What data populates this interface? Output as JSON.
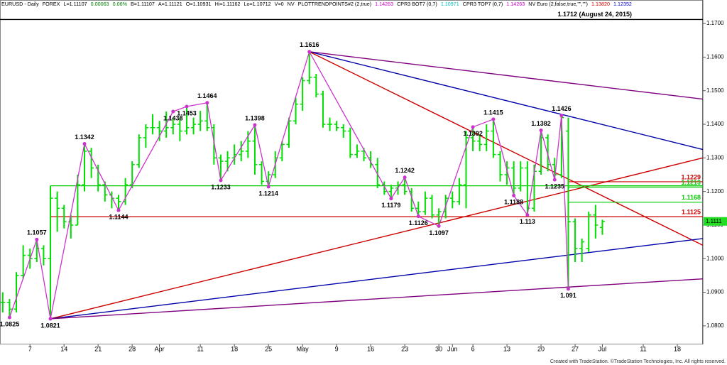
{
  "chart_data": {
    "type": "ohlc",
    "header": [
      {
        "text": "EURUSD - Daily",
        "color": "#000"
      },
      {
        "text": "FOREX",
        "color": "#000"
      },
      {
        "text": "L=1.11107",
        "color": "#000"
      },
      {
        "text": "0.00063",
        "color": "#008000"
      },
      {
        "text": "0.06%",
        "color": "#008000"
      },
      {
        "text": "B=1.11107",
        "color": "#000"
      },
      {
        "text": "A=1.11121",
        "color": "#000"
      },
      {
        "text": "O=1.10931",
        "color": "#000"
      },
      {
        "text": "Hi=1.11162",
        "color": "#000"
      },
      {
        "text": "Lo=1.10712",
        "color": "#000"
      },
      {
        "text": "V=0",
        "color": "#000"
      },
      {
        "text": "NV",
        "color": "#000"
      },
      {
        "text": "PLOTTRENDPOINTS#2 (2,true)",
        "color": "#000"
      },
      {
        "text": "1.14263",
        "color": "#cc00cc"
      },
      {
        "text": "CPR3 BOT7 (0,7)",
        "color": "#000"
      },
      {
        "text": "1.10971",
        "color": "#00bbbb"
      },
      {
        "text": "CPR3 TOP7 (0,7)",
        "color": "#000"
      },
      {
        "text": "1.14263",
        "color": "#cc00cc"
      },
      {
        "text": "NV Euro (2,false,true,\"\",\"\")",
        "color": "#000"
      },
      {
        "text": "1.13820",
        "color": "#cc0000"
      },
      {
        "text": "1.12352",
        "color": "#0000cc"
      }
    ],
    "footer": "Created with TradeStation. ©TradeStation Technologies, Inc. All rights reserved.",
    "color": "#00dd00",
    "x": [
      1,
      2,
      3,
      4,
      5,
      6,
      7,
      8,
      9,
      10,
      11,
      12,
      13,
      14,
      15,
      16,
      17,
      18,
      19,
      20,
      21,
      22,
      23,
      24,
      25,
      26,
      27,
      28,
      29,
      30,
      31,
      32,
      33,
      34,
      35,
      36,
      37,
      38,
      39,
      40,
      41,
      42,
      43,
      44,
      45,
      46,
      47,
      48,
      49,
      50,
      51,
      52,
      53,
      54,
      55,
      56,
      57,
      58,
      59,
      60,
      61,
      62,
      63,
      64,
      65,
      66,
      67,
      68,
      69,
      70,
      71,
      72,
      73,
      74,
      75,
      76,
      77,
      78,
      79,
      80,
      81,
      82,
      83,
      84,
      85,
      86,
      87,
      88,
      89
    ],
    "ohlc": [
      [
        1.087,
        1.09,
        1.084,
        1.087
      ],
      [
        1.087,
        1.088,
        1.0825,
        1.085
      ],
      [
        1.085,
        1.096,
        1.084,
        1.095
      ],
      [
        1.095,
        1.104,
        1.094,
        1.101
      ],
      [
        1.101,
        1.103,
        1.097,
        1.1
      ],
      [
        1.1,
        1.1057,
        1.099,
        1.103
      ],
      [
        1.103,
        1.104,
        1.098,
        1.1
      ],
      [
        1.1,
        1.1217,
        1.0821,
        1.118
      ],
      [
        1.118,
        1.12,
        1.108,
        1.115
      ],
      [
        1.115,
        1.116,
        1.109,
        1.111
      ],
      [
        1.111,
        1.113,
        1.106,
        1.11
      ],
      [
        1.11,
        1.125,
        1.11,
        1.122
      ],
      [
        1.122,
        1.1342,
        1.12,
        1.132
      ],
      [
        1.132,
        1.133,
        1.124,
        1.127
      ],
      [
        1.127,
        1.128,
        1.12,
        1.122
      ],
      [
        1.122,
        1.123,
        1.117,
        1.119
      ],
      [
        1.119,
        1.12,
        1.115,
        1.118
      ],
      [
        1.118,
        1.119,
        1.1144,
        1.117
      ],
      [
        1.117,
        1.124,
        1.116,
        1.122
      ],
      [
        1.122,
        1.129,
        1.121,
        1.128
      ],
      [
        1.128,
        1.137,
        1.127,
        1.136
      ],
      [
        1.136,
        1.14,
        1.133,
        1.139
      ],
      [
        1.139,
        1.143,
        1.137,
        1.139
      ],
      [
        1.139,
        1.141,
        1.135,
        1.138
      ],
      [
        1.138,
        1.1438,
        1.136,
        1.139
      ],
      [
        1.139,
        1.142,
        1.137,
        1.14
      ],
      [
        1.14,
        1.142,
        1.135,
        1.138
      ],
      [
        1.138,
        1.1453,
        1.137,
        1.139
      ],
      [
        1.139,
        1.142,
        1.137,
        1.14
      ],
      [
        1.14,
        1.144,
        1.138,
        1.141
      ],
      [
        1.141,
        1.1464,
        1.138,
        1.139
      ],
      [
        1.139,
        1.14,
        1.128,
        1.13
      ],
      [
        1.13,
        1.131,
        1.1233,
        1.129
      ],
      [
        1.129,
        1.132,
        1.126,
        1.13
      ],
      [
        1.13,
        1.134,
        1.128,
        1.131
      ],
      [
        1.131,
        1.135,
        1.129,
        1.132
      ],
      [
        1.132,
        1.138,
        1.13,
        1.135
      ],
      [
        1.135,
        1.1398,
        1.125,
        1.128
      ],
      [
        1.128,
        1.129,
        1.122,
        1.123
      ],
      [
        1.123,
        1.126,
        1.1214,
        1.125
      ],
      [
        1.125,
        1.132,
        1.124,
        1.13
      ],
      [
        1.13,
        1.135,
        1.129,
        1.134
      ],
      [
        1.134,
        1.142,
        1.133,
        1.141
      ],
      [
        1.141,
        1.148,
        1.14,
        1.146
      ],
      [
        1.146,
        1.154,
        1.144,
        1.153
      ],
      [
        1.153,
        1.1616,
        1.152,
        1.154
      ],
      [
        1.154,
        1.155,
        1.148,
        1.149
      ],
      [
        1.149,
        1.15,
        1.139,
        1.14
      ],
      [
        1.14,
        1.142,
        1.138,
        1.14
      ],
      [
        1.14,
        1.141,
        1.138,
        1.139
      ],
      [
        1.139,
        1.14,
        1.136,
        1.138
      ],
      [
        1.138,
        1.139,
        1.13,
        1.131
      ],
      [
        1.131,
        1.134,
        1.13,
        1.132
      ],
      [
        1.132,
        1.133,
        1.129,
        1.13
      ],
      [
        1.13,
        1.132,
        1.127,
        1.128
      ],
      [
        1.128,
        1.13,
        1.121,
        1.122
      ],
      [
        1.122,
        1.123,
        1.119,
        1.12
      ],
      [
        1.12,
        1.122,
        1.1179,
        1.121
      ],
      [
        1.121,
        1.123,
        1.119,
        1.122
      ],
      [
        1.122,
        1.1242,
        1.119,
        1.12
      ],
      [
        1.12,
        1.121,
        1.114,
        1.115
      ],
      [
        1.115,
        1.117,
        1.1126,
        1.114
      ],
      [
        1.114,
        1.12,
        1.113,
        1.118
      ],
      [
        1.118,
        1.119,
        1.112,
        1.113
      ],
      [
        1.113,
        1.115,
        1.1097,
        1.114
      ],
      [
        1.114,
        1.119,
        1.112,
        1.118
      ],
      [
        1.118,
        1.12,
        1.115,
        1.117
      ],
      [
        1.117,
        1.124,
        1.116,
        1.122
      ],
      [
        1.122,
        1.138,
        1.115,
        1.136
      ],
      [
        1.136,
        1.1392,
        1.132,
        1.135
      ],
      [
        1.135,
        1.137,
        1.132,
        1.134
      ],
      [
        1.134,
        1.14,
        1.132,
        1.138
      ],
      [
        1.138,
        1.1415,
        1.13,
        1.131
      ],
      [
        1.131,
        1.132,
        1.123,
        1.125
      ],
      [
        1.125,
        1.129,
        1.122,
        1.127
      ],
      [
        1.127,
        1.129,
        1.1188,
        1.121
      ],
      [
        1.121,
        1.129,
        1.12,
        1.127
      ],
      [
        1.127,
        1.129,
        1.113,
        1.115
      ],
      [
        1.115,
        1.128,
        1.114,
        1.126
      ],
      [
        1.126,
        1.1382,
        1.125,
        1.136
      ],
      [
        1.136,
        1.137,
        1.126,
        1.128
      ],
      [
        1.128,
        1.13,
        1.1235,
        1.125
      ],
      [
        1.125,
        1.1426,
        1.124,
        1.142
      ],
      [
        1.138,
        1.142,
        1.091,
        1.111
      ],
      [
        1.111,
        1.112,
        1.099,
        1.103
      ],
      [
        1.103,
        1.106,
        1.099,
        1.105
      ],
      [
        1.103,
        1.114,
        1.102,
        1.113
      ],
      [
        1.113,
        1.116,
        1.106,
        1.11
      ],
      [
        1.1093,
        1.1116,
        1.1071,
        1.1111
      ]
    ],
    "pivots": {
      "x": [
        2,
        6,
        8,
        13,
        18,
        26,
        28,
        31,
        33,
        38,
        40,
        46,
        58,
        60,
        62,
        65,
        70,
        73,
        76,
        78,
        80,
        82,
        83,
        84
      ],
      "values": [
        1.0825,
        1.1057,
        1.0821,
        1.1342,
        1.1144,
        1.1438,
        1.1453,
        1.1464,
        1.1233,
        1.1398,
        1.1214,
        1.1616,
        1.1179,
        1.1242,
        1.1126,
        1.1097,
        1.1392,
        1.1415,
        1.1188,
        1.113,
        1.1382,
        1.1235,
        1.1426,
        1.091
      ],
      "color": "#cc33cc"
    },
    "trendlines": [
      {
        "x": [
          46,
          103.75
        ],
        "values": [
          1.1616,
          1.1475
        ],
        "color": "#800080"
      },
      {
        "x": [
          46,
          103.75
        ],
        "values": [
          1.1616,
          1.1325
        ],
        "color": "#0000aa"
      },
      {
        "x": [
          46,
          103.75
        ],
        "values": [
          1.1616,
          1.104
        ],
        "color": "#cc0000"
      },
      {
        "x": [
          8,
          103.75
        ],
        "values": [
          1.0821,
          1.13
        ],
        "color": "#cc0000"
      },
      {
        "x": [
          8,
          103.75
        ],
        "values": [
          1.0821,
          1.106
        ],
        "color": "#0000aa"
      },
      {
        "x": [
          8,
          103.75
        ],
        "values": [
          1.0821,
          1.094
        ],
        "color": "#800080"
      }
    ],
    "levels": [
      {
        "value": 1.1217,
        "from": 8,
        "color": "#00cc00",
        "show_label": false
      },
      {
        "value": 1.1125,
        "from": 8,
        "color": "#cc0000",
        "show_label": true
      },
      {
        "value": 1.1229,
        "from": 84,
        "color": "#cc0000",
        "show_label": true
      },
      {
        "value": 1.1213,
        "from": 84,
        "color": "#00cc00",
        "show_label": true
      },
      {
        "value": 1.1168,
        "from": 84,
        "color": "#00cc00",
        "show_label": true
      }
    ],
    "reference_line": {
      "value": 1.1712,
      "label": "1.1712 (August 24, 2015)"
    },
    "last_price": 1.1111,
    "xlim": [
      0.6,
      103.75
    ],
    "ylim": [
      1.073,
      1.177
    ],
    "xticks": [
      {
        "value": 5,
        "label": "7"
      },
      {
        "value": 10,
        "label": "14"
      },
      {
        "value": 15,
        "label": "21"
      },
      {
        "value": 20,
        "label": "28"
      },
      {
        "value": 24,
        "label": "Apr"
      },
      {
        "value": 30,
        "label": "11"
      },
      {
        "value": 35,
        "label": "18"
      },
      {
        "value": 40,
        "label": "25"
      },
      {
        "value": 45,
        "label": "May"
      },
      {
        "value": 50,
        "label": "9"
      },
      {
        "value": 55,
        "label": "16"
      },
      {
        "value": 60,
        "label": "23"
      },
      {
        "value": 65,
        "label": "30"
      },
      {
        "value": 67,
        "label": "Jun"
      },
      {
        "value": 70,
        "label": "6"
      },
      {
        "value": 75,
        "label": "13"
      },
      {
        "value": 80,
        "label": "20"
      },
      {
        "value": 85,
        "label": "27"
      },
      {
        "value": 89,
        "label": "Jul"
      },
      {
        "value": 95,
        "label": "11"
      },
      {
        "value": 100,
        "label": "18"
      }
    ],
    "yticks": [
      {
        "value": 1.08,
        "label": "1.0800"
      },
      {
        "value": 1.09,
        "label": "1.0900"
      },
      {
        "value": 1.1,
        "label": "1.1000"
      },
      {
        "value": 1.11,
        "label": "1.1100"
      },
      {
        "value": 1.12,
        "label": "1.1200"
      },
      {
        "value": 1.13,
        "label": "1.1300"
      },
      {
        "value": 1.14,
        "label": "1.1400"
      },
      {
        "value": 1.15,
        "label": "1.1500"
      },
      {
        "value": 1.16,
        "label": "1.1600"
      },
      {
        "value": 1.17,
        "label": "1.1700"
      }
    ]
  }
}
